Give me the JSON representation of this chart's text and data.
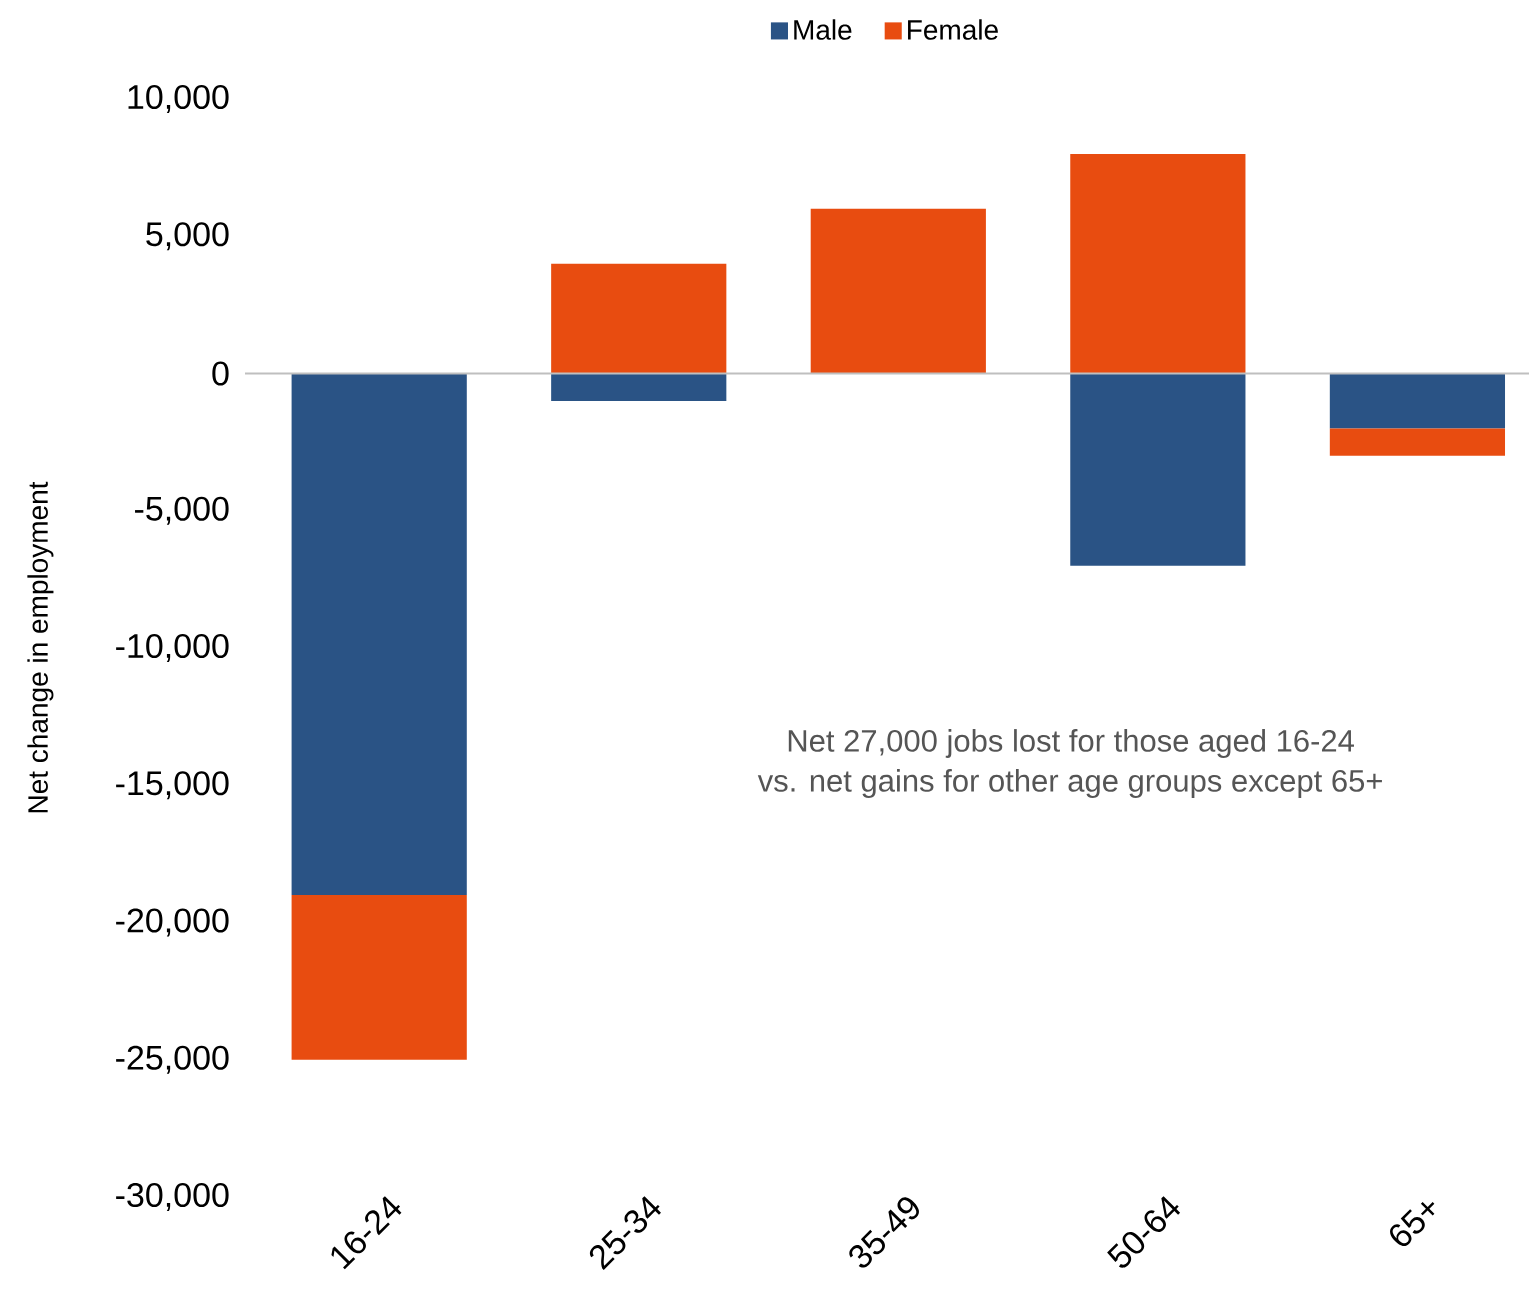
{
  "chart_data": {
    "type": "bar",
    "stacked": true,
    "categories": [
      "16-24",
      "25-34",
      "35-49",
      "50-64",
      "65+"
    ],
    "series": [
      {
        "name": "Male",
        "color": "#2a5385",
        "values": [
          -19000,
          -1000,
          0,
          -7000,
          -2000
        ]
      },
      {
        "name": "Female",
        "color": "#e84c10",
        "values": [
          -6000,
          4000,
          6000,
          8000,
          -1000
        ]
      }
    ],
    "ylabel": "Net change in employment",
    "ylim": [
      -30000,
      10000
    ],
    "yticks": [
      {
        "value": -30000,
        "label": "-30,000"
      },
      {
        "value": -25000,
        "label": "-25,000"
      },
      {
        "value": -20000,
        "label": "-20,000"
      },
      {
        "value": -15000,
        "label": "-15,000"
      },
      {
        "value": -10000,
        "label": "-10,000"
      },
      {
        "value": -5000,
        "label": "-5,000"
      },
      {
        "value": 0,
        "label": "0"
      },
      {
        "value": 5000,
        "label": "5,000"
      },
      {
        "value": 10000,
        "label": "10,000"
      }
    ],
    "annotations": [
      "Net 27,000 jobs lost for those aged 16-24",
      "vs. net gains for other age groups except 65+"
    ],
    "legend": "top"
  }
}
